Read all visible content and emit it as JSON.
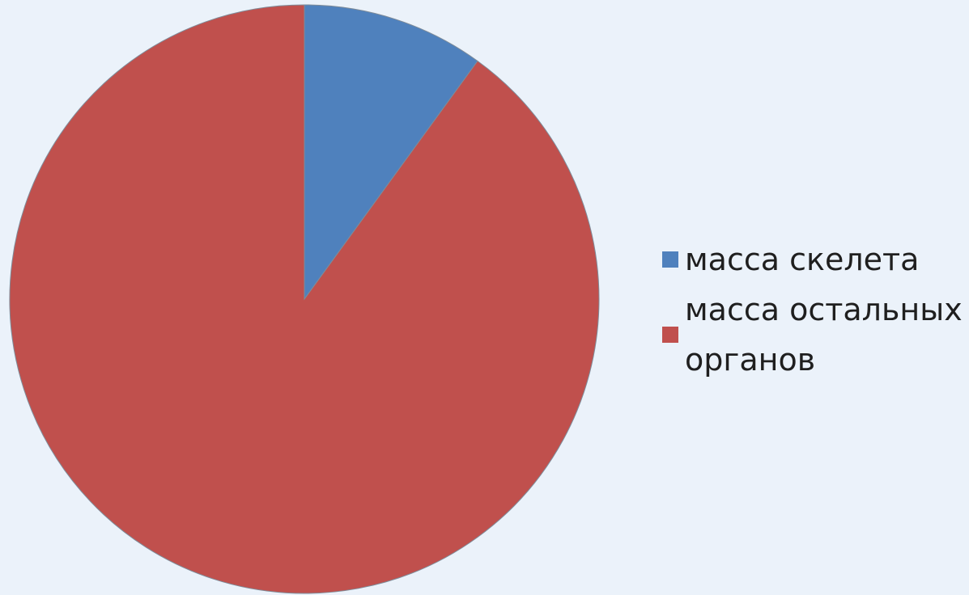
{
  "chart_data": {
    "type": "pie",
    "title": "",
    "categories": [
      "масса скелета",
      "масса остальных органов"
    ],
    "values": [
      10,
      90
    ],
    "colors": [
      "#4f81bd",
      "#c0504d"
    ],
    "start_angle_deg": 0,
    "direction": "clockwise",
    "legend_position": "right"
  },
  "legend": {
    "items": [
      {
        "label": "масса скелета",
        "color": "#4f81bd"
      },
      {
        "label": "масса остальных органов",
        "color": "#c0504d"
      }
    ]
  }
}
